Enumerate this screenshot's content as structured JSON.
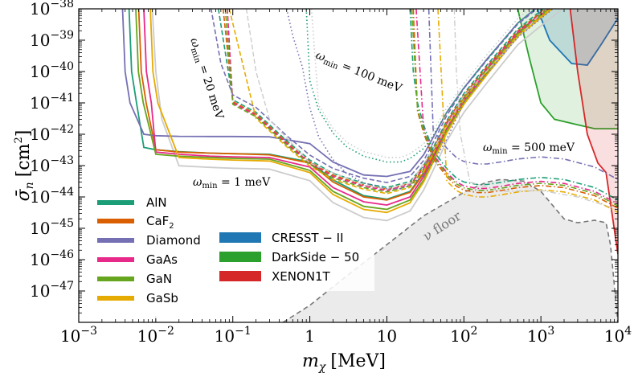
{
  "chart_data": {
    "type": "line",
    "xlabel_math": "m",
    "xlabel_sub": "χ",
    "xlabel_unit": "[MeV]",
    "ylabel_math": "σ̄",
    "ylabel_sub": "n",
    "ylabel_unit": "[cm",
    "ylabel_unit_tail": "]",
    "ylabel_unit_exp": "2",
    "x_scale": "log",
    "y_scale": "log",
    "xlim": [
      0.001,
      10000
    ],
    "ylim": [
      1e-48,
      1e-38
    ],
    "grid": false,
    "x_ticks": [
      {
        "mant": "10",
        "exp": "−3",
        "value": 0.001
      },
      {
        "mant": "10",
        "exp": "−2",
        "value": 0.01
      },
      {
        "mant": "10",
        "exp": "−1",
        "value": 0.1
      },
      {
        "mant": "1",
        "exp": "",
        "value": 1
      },
      {
        "mant": "10",
        "exp": "",
        "value": 10
      },
      {
        "mant": "10",
        "exp": "2",
        "value": 100
      },
      {
        "mant": "10",
        "exp": "3",
        "value": 1000
      },
      {
        "mant": "10",
        "exp": "4",
        "value": 10000
      }
    ],
    "y_ticks": [
      {
        "mant": "10",
        "exp": "−38",
        "value": 1e-38
      },
      {
        "mant": "10",
        "exp": "−39",
        "value": 1e-39
      },
      {
        "mant": "10",
        "exp": "−40",
        "value": 1e-40
      },
      {
        "mant": "10",
        "exp": "−41",
        "value": 1e-41
      },
      {
        "mant": "10",
        "exp": "−42",
        "value": 1e-42
      },
      {
        "mant": "10",
        "exp": "−43",
        "value": 1e-43
      },
      {
        "mant": "10",
        "exp": "−44",
        "value": 1e-44
      },
      {
        "mant": "10",
        "exp": "−45",
        "value": 1e-45
      },
      {
        "mant": "10",
        "exp": "−46",
        "value": 1e-46
      },
      {
        "mant": "10",
        "exp": "−47",
        "value": 1e-47
      }
    ],
    "materials": [
      {
        "name": "AlN",
        "color": "#1b9e77"
      },
      {
        "name": "CaF",
        "sub": "2",
        "color": "#d95f02"
      },
      {
        "name": "Diamond",
        "color": "#7570b3"
      },
      {
        "name": "GaAs",
        "color": "#e7298a"
      },
      {
        "name": "GaN",
        "color": "#66a61e"
      },
      {
        "name": "GaSb",
        "color": "#e6ab02"
      }
    ],
    "experiments": [
      {
        "name": "CRESST − II",
        "color": "#1f77b4"
      },
      {
        "name": "DarkSide − 50",
        "color": "#2ca02c"
      },
      {
        "name": "XENON1T",
        "color": "#d62728"
      }
    ],
    "annotations": [
      {
        "id": "w1",
        "prefix": "ω",
        "sub": "min",
        "text": " = 1 meV"
      },
      {
        "id": "w20",
        "prefix": "ω",
        "sub": "min",
        "text": " = 20 meV"
      },
      {
        "id": "w100",
        "prefix": "ω",
        "sub": "min",
        "text": " = 100 meV"
      },
      {
        "id": "w500",
        "prefix": "ω",
        "sub": "min",
        "text": " = 500 meV"
      }
    ],
    "nu_floor_label": "ν floor",
    "nu_floor": [
      [
        0.45,
        1e-48
      ],
      [
        1,
        3.5e-48
      ],
      [
        3,
        3e-47
      ],
      [
        10,
        3e-46
      ],
      [
        30,
        2.5e-45
      ],
      [
        100,
        1.4e-44
      ],
      [
        200,
        3e-44
      ],
      [
        300,
        3.6e-44
      ],
      [
        600,
        3.2e-44
      ],
      [
        1000,
        1.5e-44
      ],
      [
        2000,
        2e-45
      ],
      [
        3000,
        1.5e-45
      ],
      [
        5000,
        1.8e-45
      ],
      [
        7000,
        1.5e-45
      ],
      [
        8000,
        3e-46
      ],
      [
        10000,
        1e-48
      ]
    ],
    "excluded_regions": {
      "CRESST": {
        "color": "#1f77b4",
        "fill_opacity": 0.18,
        "boundary": [
          [
            900,
            1e-38
          ],
          [
            1300,
            1e-39
          ],
          [
            2500,
            1.8e-40
          ],
          [
            4000,
            1.6e-40
          ],
          [
            6000,
            7e-40
          ],
          [
            10000,
            5e-39
          ]
        ]
      },
      "DarkSide": {
        "color": "#2ca02c",
        "fill_opacity": 0.15,
        "boundary": [
          [
            500,
            1e-38
          ],
          [
            700,
            3e-40
          ],
          [
            1000,
            1e-41
          ],
          [
            1500,
            3e-42
          ],
          [
            3000,
            2e-42
          ],
          [
            5000,
            1.5e-42
          ],
          [
            10000,
            1.5e-42
          ]
        ]
      },
      "XENON1T": {
        "color": "#d62728",
        "fill_opacity": 0.15,
        "boundary": [
          [
            2400,
            1e-38
          ],
          [
            3000,
            1e-40
          ],
          [
            4000,
            1e-42
          ],
          [
            5500,
            1.2e-43
          ],
          [
            7000,
            6e-44
          ],
          [
            10000,
            1.5e-46
          ]
        ]
      }
    },
    "envelopes": {
      "w1": {
        "x": [
          0.0035,
          0.005,
          0.007,
          0.01,
          0.02,
          0.05,
          0.1,
          0.3,
          1,
          2,
          5,
          10,
          20,
          30,
          40,
          60,
          100,
          200,
          500,
          1000,
          2000,
          5000,
          10000
        ],
        "gap": {
          "AlN": [
            1.2e-42,
            6e-43,
            3.8e-43,
            3.2e-43,
            2.8e-43,
            2.5e-43,
            2.4e-43,
            2.3e-43,
            1.3e-43,
            3.5e-44,
            1.1e-44,
            8.5e-45,
            1.5e-44,
            6e-44,
            2.5e-43,
            2e-42,
            1.5e-41,
            1.2e-40,
            1.7e-39,
            7e-39,
            2.8e-38,
            1.8e-37,
            7e-37
          ],
          "CaF": [
            1.6e-42,
            7e-43,
            4e-43,
            3.2e-43,
            2.7e-43,
            2.5e-43,
            2.4e-43,
            2.2e-43,
            1.2e-43,
            3e-44,
            1e-44,
            8e-45,
            1.4e-44,
            5.5e-44,
            2.2e-43,
            1.8e-42,
            1.3e-41,
            1.1e-40,
            1.6e-39,
            6.5e-39,
            2.6e-38,
            1.6e-37,
            6.5e-37
          ],
          "Diamond": [
            2e-42,
            1.2e-42,
            1e-42,
            9e-43,
            8.6e-43,
            8.5e-43,
            8.5e-43,
            8.3e-43,
            5e-43,
            1.3e-43,
            5e-44,
            4.5e-44,
            6.5e-44,
            2.2e-43,
            8e-43,
            5e-42,
            3e-41,
            2.5e-40,
            3.5e-39,
            1.4e-38,
            5.5e-38,
            3.5e-37,
            1.4e-36
          ],
          "GaAs": [
            1.5e-42,
            5e-43,
            3.2e-43,
            2.7e-43,
            2.3e-43,
            2e-43,
            1.9e-43,
            1.8e-43,
            9e-44,
            2e-44,
            7e-45,
            5.5e-45,
            1e-44,
            4.5e-44,
            1.8e-43,
            1.5e-42,
            1.2e-41,
            1e-40,
            1.5e-39,
            6e-39,
            2.4e-38,
            1.5e-37,
            6e-37
          ],
          "GaN": [
            1.4e-42,
            4.5e-43,
            2.8e-43,
            2.3e-43,
            2e-43,
            1.8e-43,
            1.7e-43,
            1.6e-43,
            7e-44,
            1.5e-44,
            5e-45,
            4e-45,
            8e-45,
            3.5e-44,
            1.5e-43,
            1.3e-42,
            1e-41,
            9e-41,
            1.4e-39,
            5.6e-39,
            2.2e-38,
            1.4e-37,
            5.6e-37
          ],
          "GaSb": [
            1.6e-42,
            4.2e-43,
            2.6e-43,
            2.1e-43,
            1.8e-43,
            1.6e-43,
            1.5e-43,
            1.4e-43,
            6e-44,
            1.2e-44,
            4e-45,
            3.2e-45,
            6.5e-45,
            3e-44,
            1.3e-43,
            1.1e-42,
            9e-42,
            8e-41,
            1.3e-39,
            5.2e-39,
            2e-38,
            1.3e-37,
            5.2e-37
          ]
        },
        "onset": {
          "AlN": 0.0045,
          "CaF": 0.006,
          "Diamond": 0.0037,
          "GaAs": 0.007,
          "GaN": 0.0055,
          "GaSb": 0.0085
        }
      },
      "w20": {
        "x": [
          0.05,
          0.07,
          0.1,
          0.2,
          0.5,
          1,
          2,
          5,
          10,
          20,
          30,
          40,
          60,
          100,
          200,
          500,
          1000,
          2000,
          5000,
          10000
        ],
        "base": [
          1e-38,
          1e-40,
          1e-41,
          4e-42,
          5e-43,
          1.2e-43,
          4.5e-44,
          2.2e-44,
          1.6e-44,
          2.5e-44,
          8e-44,
          3e-43,
          2.2e-42,
          1.6e-41,
          1.3e-40,
          1.8e-39,
          7e-39,
          2.8e-38,
          1.8e-37,
          7e-37
        ],
        "start": {
          "AlN": 0.065,
          "CaF": 0.075,
          "Diamond": 0.035,
          "GaAs": 0.085,
          "GaN": 0.08,
          "GaSb": 0.09
        },
        "scale": {
          "AlN": 1.25,
          "CaF": 1.1,
          "Diamond": 1.8,
          "GaAs": 1.0,
          "GaN": 0.9,
          "GaSb": 0.8
        }
      },
      "w100": {
        "x": [
          0.6,
          0.8,
          1,
          1.3,
          2,
          3,
          5,
          10,
          15,
          20,
          30,
          40,
          60,
          100,
          200,
          500,
          1000,
          2000,
          5000,
          10000
        ],
        "base": [
          1e-38,
          1e-39,
          5e-41,
          6e-42,
          1.1e-42,
          4e-43,
          2e-43,
          1.3e-43,
          1.3e-43,
          1.7e-43,
          3.5e-43,
          9e-43,
          5e-42,
          3e-41,
          2.5e-40,
          3.5e-39,
          1.4e-38,
          5.5e-38,
          3.5e-37,
          1.4e-36
        ],
        "start": {
          "AlN": 0.9,
          "Diamond": 0.5
        }
      },
      "w500": {
        "x": [
          20,
          22,
          25,
          30,
          40,
          60,
          80,
          100,
          150,
          200,
          300,
          500,
          1000,
          2000,
          5000,
          10000
        ],
        "base": [
          1e-38,
          1e-40,
          1e-41,
          2e-42,
          3e-43,
          8e-44,
          4e-44,
          3e-44,
          2.5e-44,
          2.5e-44,
          2.9e-44,
          3.6e-44,
          4.2e-44,
          3.6e-44,
          2e-44,
          8e-45
        ],
        "start": {
          "AlN": 20,
          "CaF": 22,
          "Diamond": 35,
          "GaAs": 24,
          "GaN": 21,
          "GaSb": 46
        },
        "scale": {
          "AlN": 1.0,
          "CaF": 0.55,
          "Diamond": 4.5,
          "GaAs": 0.75,
          "GaN": 0.65,
          "GaSb": 0.4
        }
      }
    }
  }
}
